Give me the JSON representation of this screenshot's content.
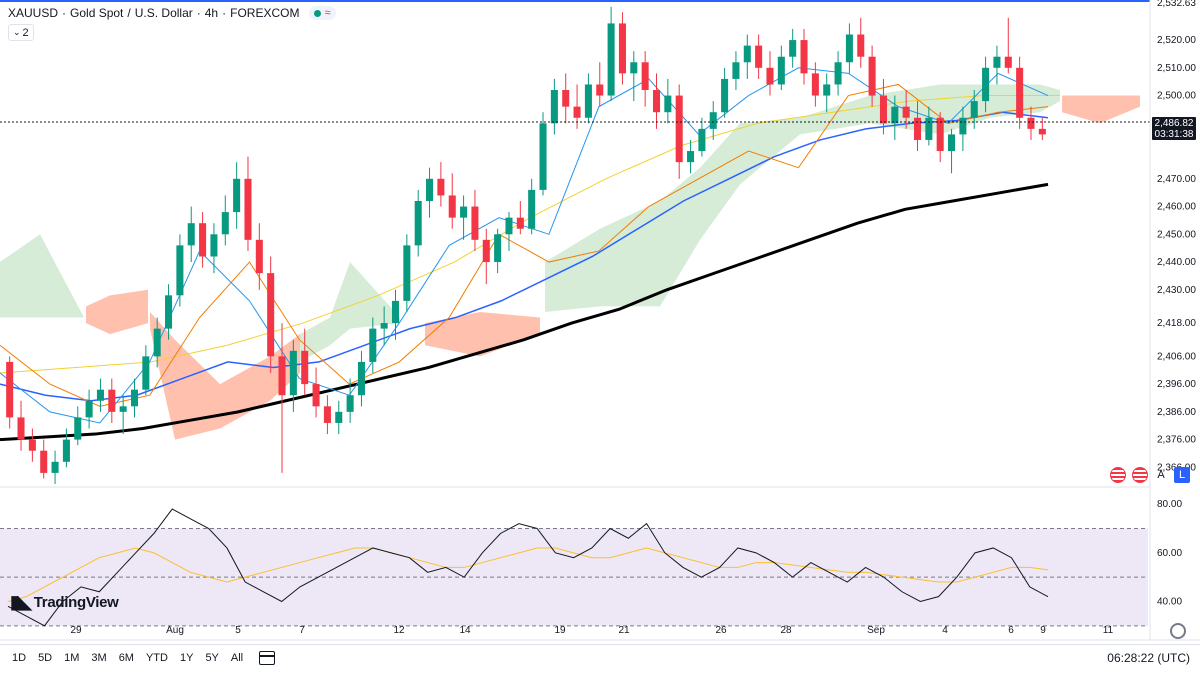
{
  "header": {
    "symbol": "XAUUSD",
    "name": "Gold Spot",
    "quote": "U.S. Dollar",
    "interval": "4h",
    "exchange": "FOREXCOM",
    "interval_count": "2"
  },
  "price_axis": {
    "ticks": [
      "2,520.00",
      "2,510.00",
      "2,500.00",
      "2,490.00",
      "2,470.00",
      "2,460.00",
      "2,450.00",
      "2,440.00",
      "2,430.00",
      "2,418.00",
      "2,406.00",
      "2,396.00",
      "2,386.00",
      "2,376.00",
      "2,366.00"
    ],
    "top_label": "2,532.63",
    "current_price": "2,486.82",
    "countdown": "03:31:38"
  },
  "rsi_axis": {
    "ticks": [
      "80.00",
      "60.00",
      "40.00"
    ]
  },
  "time_axis": {
    "labels": [
      "29",
      "Aug",
      "5",
      "7",
      "12",
      "14",
      "19",
      "21",
      "26",
      "28",
      "Sep",
      "4",
      "6",
      "9",
      "11"
    ]
  },
  "ranges": [
    "1D",
    "5D",
    "1M",
    "3M",
    "6M",
    "YTD",
    "1Y",
    "5Y",
    "All"
  ],
  "clock": "06:28:22 (UTC)",
  "logo_text": "TradingView",
  "tools": {
    "auto": "A",
    "log": "L"
  },
  "colors": {
    "up": "#089981",
    "down": "#f23645",
    "ma_long": "#000000",
    "ma_mid": "#2962ff",
    "tenkan": "#2196f3",
    "kijun": "#f57c00",
    "ma_short": "#f2d230",
    "cloud_bull": "#c8e6c9",
    "cloud_bear": "#ffab91",
    "rsi": "#131722",
    "rsi_ma": "#fbc02d",
    "rsi_band": "#ede7f6"
  },
  "chart_data": {
    "type": "candlestick",
    "y_price_range": [
      2360,
      2533
    ],
    "rsi_range": [
      25,
      85
    ],
    "candles": [
      [
        2404,
        2406,
        2380,
        2384
      ],
      [
        2384,
        2390,
        2372,
        2376
      ],
      [
        2376,
        2380,
        2368,
        2372
      ],
      [
        2372,
        2376,
        2362,
        2364
      ],
      [
        2364,
        2372,
        2360,
        2368
      ],
      [
        2368,
        2380,
        2366,
        2376
      ],
      [
        2376,
        2388,
        2374,
        2384
      ],
      [
        2384,
        2394,
        2380,
        2390
      ],
      [
        2390,
        2398,
        2386,
        2394
      ],
      [
        2394,
        2398,
        2382,
        2386
      ],
      [
        2386,
        2392,
        2378,
        2388
      ],
      [
        2388,
        2398,
        2384,
        2394
      ],
      [
        2394,
        2410,
        2392,
        2406
      ],
      [
        2406,
        2420,
        2402,
        2416
      ],
      [
        2416,
        2432,
        2412,
        2428
      ],
      [
        2428,
        2450,
        2424,
        2446
      ],
      [
        2446,
        2460,
        2440,
        2454
      ],
      [
        2454,
        2458,
        2438,
        2442
      ],
      [
        2442,
        2454,
        2436,
        2450
      ],
      [
        2450,
        2464,
        2446,
        2458
      ],
      [
        2458,
        2476,
        2452,
        2470
      ],
      [
        2470,
        2478,
        2444,
        2448
      ],
      [
        2448,
        2454,
        2430,
        2436
      ],
      [
        2436,
        2442,
        2400,
        2406
      ],
      [
        2406,
        2418,
        2364,
        2392
      ],
      [
        2392,
        2412,
        2386,
        2408
      ],
      [
        2408,
        2416,
        2392,
        2396
      ],
      [
        2396,
        2402,
        2384,
        2388
      ],
      [
        2388,
        2392,
        2378,
        2382
      ],
      [
        2382,
        2390,
        2378,
        2386
      ],
      [
        2386,
        2398,
        2382,
        2392
      ],
      [
        2392,
        2408,
        2388,
        2404
      ],
      [
        2404,
        2420,
        2400,
        2416
      ],
      [
        2416,
        2424,
        2410,
        2418
      ],
      [
        2418,
        2430,
        2412,
        2426
      ],
      [
        2426,
        2450,
        2422,
        2446
      ],
      [
        2446,
        2466,
        2442,
        2462
      ],
      [
        2462,
        2474,
        2456,
        2470
      ],
      [
        2470,
        2476,
        2460,
        2464
      ],
      [
        2464,
        2472,
        2452,
        2456
      ],
      [
        2456,
        2464,
        2448,
        2460
      ],
      [
        2460,
        2466,
        2444,
        2448
      ],
      [
        2448,
        2452,
        2432,
        2440
      ],
      [
        2440,
        2452,
        2436,
        2450
      ],
      [
        2450,
        2458,
        2444,
        2456
      ],
      [
        2456,
        2462,
        2450,
        2452
      ],
      [
        2452,
        2470,
        2450,
        2466
      ],
      [
        2466,
        2494,
        2464,
        2490
      ],
      [
        2490,
        2506,
        2486,
        2502
      ],
      [
        2502,
        2508,
        2490,
        2496
      ],
      [
        2496,
        2504,
        2488,
        2492
      ],
      [
        2492,
        2508,
        2490,
        2504
      ],
      [
        2504,
        2512,
        2496,
        2500
      ],
      [
        2500,
        2532,
        2498,
        2526
      ],
      [
        2526,
        2530,
        2504,
        2508
      ],
      [
        2508,
        2516,
        2498,
        2512
      ],
      [
        2512,
        2516,
        2496,
        2502
      ],
      [
        2502,
        2508,
        2488,
        2494
      ],
      [
        2494,
        2506,
        2490,
        2500
      ],
      [
        2500,
        2504,
        2470,
        2476
      ],
      [
        2476,
        2484,
        2472,
        2480
      ],
      [
        2480,
        2492,
        2478,
        2488
      ],
      [
        2488,
        2498,
        2484,
        2494
      ],
      [
        2494,
        2510,
        2492,
        2506
      ],
      [
        2506,
        2516,
        2502,
        2512
      ],
      [
        2512,
        2522,
        2506,
        2518
      ],
      [
        2518,
        2522,
        2506,
        2510
      ],
      [
        2510,
        2516,
        2500,
        2504
      ],
      [
        2504,
        2518,
        2502,
        2514
      ],
      [
        2514,
        2524,
        2510,
        2520
      ],
      [
        2520,
        2524,
        2504,
        2508
      ],
      [
        2508,
        2512,
        2496,
        2500
      ],
      [
        2500,
        2508,
        2494,
        2504
      ],
      [
        2504,
        2516,
        2500,
        2512
      ],
      [
        2512,
        2526,
        2508,
        2522
      ],
      [
        2522,
        2528,
        2510,
        2514
      ],
      [
        2514,
        2518,
        2496,
        2500
      ],
      [
        2500,
        2506,
        2486,
        2490
      ],
      [
        2490,
        2500,
        2484,
        2496
      ],
      [
        2496,
        2502,
        2488,
        2492
      ],
      [
        2492,
        2498,
        2480,
        2484
      ],
      [
        2484,
        2496,
        2482,
        2492
      ],
      [
        2492,
        2494,
        2476,
        2480
      ],
      [
        2480,
        2488,
        2472,
        2486
      ],
      [
        2486,
        2496,
        2480,
        2492
      ],
      [
        2492,
        2502,
        2488,
        2498
      ],
      [
        2498,
        2514,
        2494,
        2510
      ],
      [
        2510,
        2518,
        2504,
        2514
      ],
      [
        2514,
        2528,
        2508,
        2510
      ],
      [
        2510,
        2514,
        2488,
        2492
      ],
      [
        2492,
        2496,
        2484,
        2488
      ],
      [
        2488,
        2492,
        2484,
        2486
      ]
    ],
    "ma_long": [
      2376,
      2377,
      2378,
      2380,
      2383,
      2386,
      2390,
      2394,
      2398,
      2402,
      2407,
      2412,
      2418,
      2423,
      2430,
      2436,
      2442,
      2448,
      2454,
      2459,
      2462,
      2465,
      2468
    ],
    "ma_mid": [
      2396,
      2392,
      2390,
      2392,
      2398,
      2404,
      2402,
      2404,
      2410,
      2416,
      2420,
      2426,
      2434,
      2442,
      2452,
      2462,
      2470,
      2478,
      2484,
      2488,
      2490,
      2491,
      2494,
      2492
    ],
    "rsi": [
      38,
      34,
      30,
      40,
      46,
      44,
      52,
      60,
      68,
      78,
      74,
      70,
      62,
      48,
      44,
      40,
      46,
      50,
      54,
      58,
      62,
      60,
      58,
      52,
      54,
      50,
      60,
      68,
      72,
      70,
      60,
      58,
      62,
      70,
      66,
      72,
      60,
      54,
      50,
      54,
      62,
      60,
      56,
      50,
      56,
      52,
      48,
      54,
      50,
      44,
      40,
      42,
      50,
      60,
      62,
      58,
      46,
      42
    ],
    "rsi_ma": [
      40,
      42,
      46,
      50,
      54,
      58,
      60,
      62,
      60,
      56,
      52,
      50,
      48,
      50,
      52,
      54,
      56,
      58,
      60,
      62,
      62,
      60,
      58,
      56,
      54,
      54,
      56,
      58,
      60,
      62,
      62,
      60,
      58,
      58,
      60,
      62,
      60,
      58,
      56,
      54,
      54,
      56,
      56,
      55,
      54,
      53,
      52,
      52,
      51,
      50,
      49,
      48,
      48,
      50,
      52,
      54,
      54,
      53
    ]
  }
}
